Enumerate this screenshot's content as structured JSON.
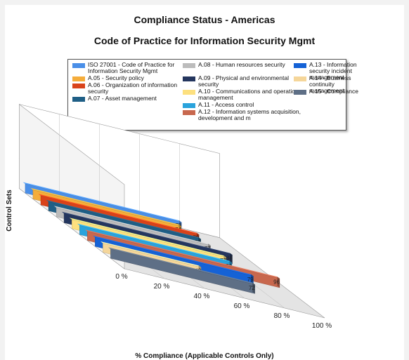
{
  "title": "Compliance Status - Americas",
  "subtitle": "Code of Practice for Information Security Mgmt",
  "chart_data": {
    "type": "bar",
    "orientation": "horizontal-3d",
    "title": "Compliance Status - Americas",
    "subtitle": "Code of Practice for Information Security Mgmt",
    "xlabel": "% Compliance (Applicable Controls Only)",
    "ylabel": "Control Sets",
    "xlim": [
      0,
      100
    ],
    "x_ticks": [
      "0 %",
      "20 %",
      "40 %",
      "60 %",
      "80 %",
      "100 %"
    ],
    "legend_position": "top",
    "series": [
      {
        "name": "ISO 27001 - Code of Practice for Information Security Mgmt",
        "value": 78,
        "color": "#4a8fe8"
      },
      {
        "name": "A.05 - Security policy",
        "value": 74,
        "color": "#f5ad3b"
      },
      {
        "name": "A.06 - Organization of information security",
        "value": 79,
        "color": "#d9431a"
      },
      {
        "name": "A.07 - Asset management",
        "value": 76,
        "color": "#1f5f86"
      },
      {
        "name": "A.08 - Human resources security",
        "value": 77,
        "color": "#bcbcbc"
      },
      {
        "name": "A.09 - Physical and environmental security",
        "value": 84,
        "color": "#24365e"
      },
      {
        "name": "A.10 - Communications and operations management",
        "value": 77,
        "color": "#fde07f"
      },
      {
        "name": "A.11 - Access control",
        "value": 76,
        "color": "#2aa3dc"
      },
      {
        "name": "A.12 - Information systems acquisition, development and m",
        "value": 96,
        "color": "#c8684e"
      },
      {
        "name": "A.13 - Information security incident management",
        "value": 79,
        "color": "#1562d6"
      },
      {
        "name": "A.14 - Business continuity management",
        "value": 49,
        "color": "#f5d69a"
      },
      {
        "name": "A.15 - Compliance",
        "value": 72,
        "color": "#5e6f86"
      }
    ]
  }
}
